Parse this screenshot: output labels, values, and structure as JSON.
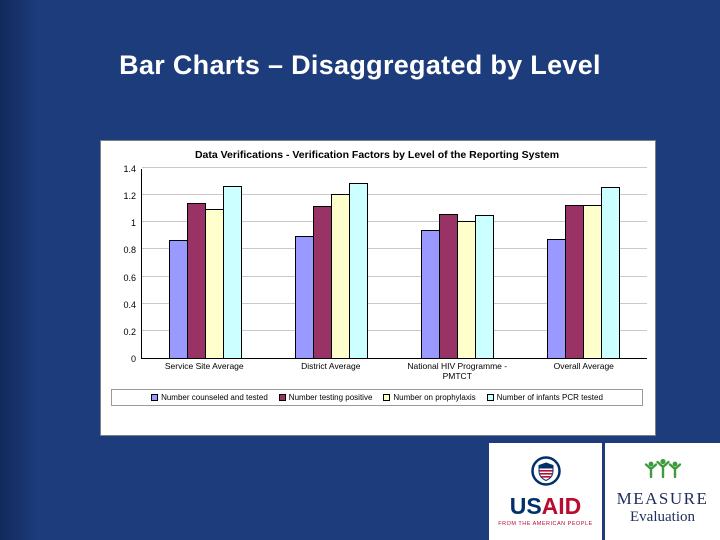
{
  "slide": {
    "title": "Bar Charts – Disaggregated by Level"
  },
  "chart_data": {
    "type": "bar",
    "title": "Data Verifications - Verification Factors by Level of the Reporting System",
    "categories": [
      "Service Site Average",
      "District Average",
      "National HIV Programme - PMTCT",
      "Overall Average"
    ],
    "series": [
      {
        "name": "Number counseled and tested",
        "color": "#9999FF",
        "values": [
          0.87,
          0.9,
          0.94,
          0.88
        ]
      },
      {
        "name": "Number testing positive",
        "color": "#993366",
        "values": [
          1.14,
          1.12,
          1.06,
          1.13
        ]
      },
      {
        "name": "Number on prophylaxis",
        "color": "#FFFFCC",
        "values": [
          1.1,
          1.21,
          1.01,
          1.13
        ]
      },
      {
        "name": "Number of infants PCR tested",
        "color": "#CCFFFF",
        "values": [
          1.27,
          1.29,
          1.05,
          1.26
        ]
      }
    ],
    "ylim": [
      0,
      1.4
    ],
    "ytick_step": 0.2,
    "grid": true,
    "legend_position": "bottom",
    "xlabel": "",
    "ylabel": ""
  },
  "logos": {
    "usaid": {
      "us": "US",
      "aid": "AID",
      "tagline": "FROM THE AMERICAN PEOPLE",
      "brand_color": "#002F6C",
      "accent_color": "#BA0C2F"
    },
    "measure": {
      "line1": "MEASURE",
      "line2": "Evaluation",
      "brand_color": "#1f2c5c",
      "icon_color": "#3E9C3E"
    }
  },
  "colors": {
    "slide_background": "#1d3c7c",
    "chart_background": "#ffffff"
  }
}
